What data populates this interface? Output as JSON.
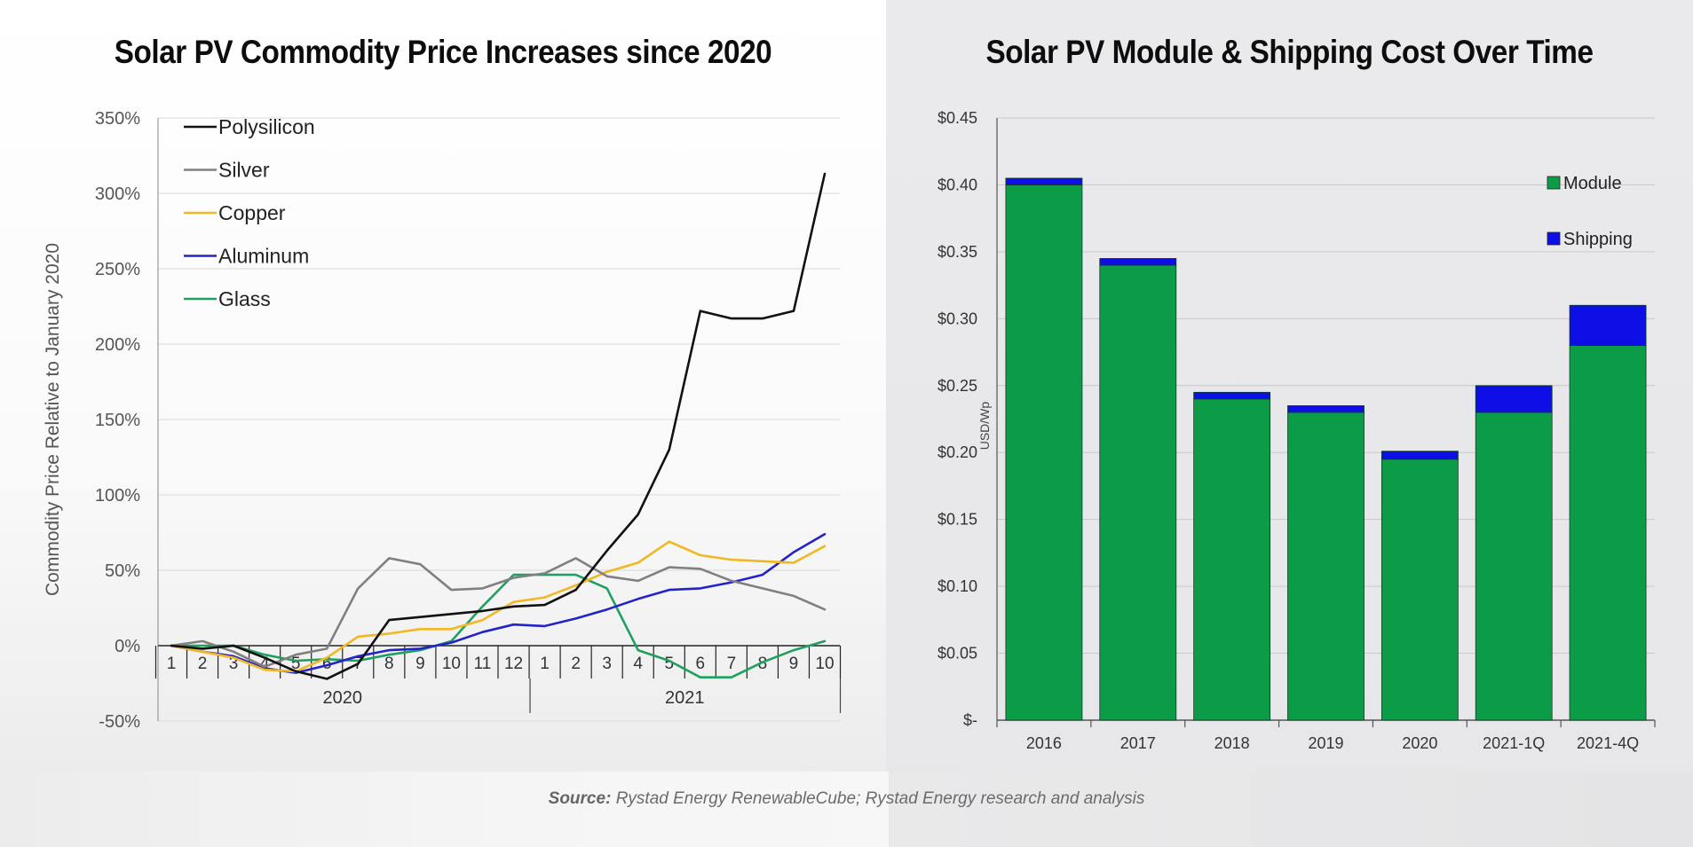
{
  "source": {
    "label": "Source:",
    "text": "Rystad Energy RenewableCube; Rystad Energy research and analysis"
  },
  "chart_data": [
    {
      "type": "line",
      "title": "Solar PV Commodity Price Increases since 2020",
      "ylabel": "Commodity Price Relative to January 2020",
      "xlabel": "",
      "ylim": [
        -50,
        350
      ],
      "yticks": [
        "-50%",
        "0%",
        "50%",
        "100%",
        "150%",
        "200%",
        "250%",
        "300%",
        "350%"
      ],
      "x": [
        "1",
        "2",
        "3",
        "4",
        "5",
        "6",
        "7",
        "8",
        "9",
        "10",
        "11",
        "12",
        "1",
        "2",
        "3",
        "4",
        "5",
        "6",
        "7",
        "8",
        "9",
        "10"
      ],
      "year_groups": [
        {
          "label": "2020",
          "start": 0,
          "end": 11
        },
        {
          "label": "2021",
          "start": 12,
          "end": 21
        }
      ],
      "grid": true,
      "legend_position": "top-left",
      "series": [
        {
          "name": "Polysilicon",
          "color": "#111111",
          "values": [
            0,
            -2,
            0,
            -8,
            -17,
            -22,
            -12,
            17,
            19,
            21,
            23,
            26,
            27,
            37,
            63,
            87,
            130,
            222,
            217,
            217,
            222,
            313
          ]
        },
        {
          "name": "Silver",
          "color": "#808080",
          "values": [
            0,
            3,
            -4,
            -14,
            -6,
            -2,
            38,
            58,
            54,
            37,
            38,
            45,
            48,
            58,
            46,
            43,
            52,
            51,
            43,
            38,
            33,
            24
          ]
        },
        {
          "name": "Copper",
          "color": "#f1b824",
          "values": [
            0,
            -4,
            -8,
            -16,
            -17,
            -8,
            6,
            8,
            11,
            11,
            17,
            29,
            32,
            40,
            49,
            55,
            69,
            60,
            57,
            56,
            55,
            66
          ]
        },
        {
          "name": "Aluminum",
          "color": "#2323c8",
          "values": [
            0,
            -4,
            -7,
            -15,
            -18,
            -13,
            -7,
            -3,
            -2,
            2,
            9,
            14,
            13,
            18,
            24,
            31,
            37,
            38,
            42,
            47,
            62,
            74
          ]
        },
        {
          "name": "Glass",
          "color": "#20a060",
          "values": [
            0,
            0,
            0,
            -6,
            -10,
            -9,
            -10,
            -6,
            -3,
            3,
            26,
            47,
            47,
            47,
            38,
            -3,
            -10,
            -21,
            -21,
            -11,
            -3,
            3
          ]
        }
      ]
    },
    {
      "type": "bar",
      "stacked": true,
      "title": "Solar PV Module & Shipping Cost Over Time",
      "ylabel": "USD/Wp",
      "xlabel": "",
      "ylim": [
        0,
        0.45
      ],
      "yticks": [
        "$-",
        "$0.05",
        "$0.10",
        "$0.15",
        "$0.20",
        "$0.25",
        "$0.30",
        "$0.35",
        "$0.40",
        "$0.45"
      ],
      "categories": [
        "2016",
        "2017",
        "2018",
        "2019",
        "2020",
        "2021-1Q",
        "2021-4Q"
      ],
      "grid": true,
      "legend_position": "top-right",
      "series": [
        {
          "name": "Module",
          "color": "#0c9c48",
          "values": [
            0.4,
            0.34,
            0.24,
            0.23,
            0.195,
            0.23,
            0.28
          ]
        },
        {
          "name": "Shipping",
          "color": "#0e0ee6",
          "values": [
            0.005,
            0.005,
            0.005,
            0.005,
            0.006,
            0.02,
            0.03
          ]
        }
      ]
    }
  ]
}
